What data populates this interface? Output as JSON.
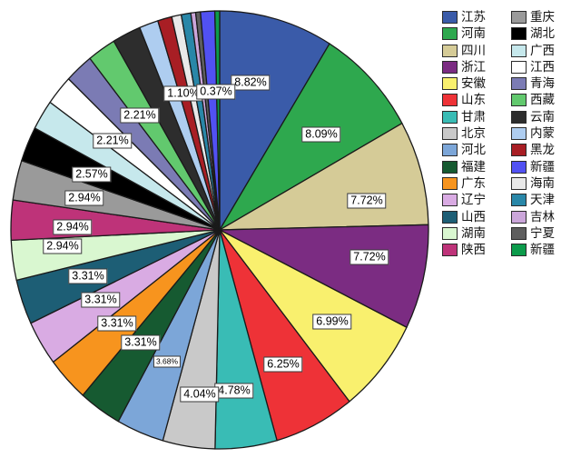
{
  "chart_data": {
    "type": "pie",
    "title": "",
    "value_format": "percent",
    "legend_position": "top-right",
    "slices": [
      {
        "name": "江苏",
        "pct": 8.82,
        "label": "8.82%",
        "color": "#3A5BA9",
        "label_visible": true
      },
      {
        "name": "河南",
        "pct": 8.09,
        "label": "8.09%",
        "color": "#2EA84E",
        "label_visible": true
      },
      {
        "name": "四川",
        "pct": 7.72,
        "label": "7.72%",
        "color": "#D5CB97",
        "label_visible": true
      },
      {
        "name": "浙江",
        "pct": 7.72,
        "label": "7.72%",
        "color": "#7B2C82",
        "label_visible": true
      },
      {
        "name": "安徽",
        "pct": 6.99,
        "label": "6.99%",
        "color": "#F9F06E",
        "label_visible": true
      },
      {
        "name": "山东",
        "pct": 6.25,
        "label": "6.25%",
        "color": "#EE3237",
        "label_visible": true
      },
      {
        "name": "甘肃",
        "pct": 4.78,
        "label": "4.78%",
        "color": "#39BCB5",
        "label_visible": true
      },
      {
        "name": "北京",
        "pct": 4.04,
        "label": "4.04%",
        "color": "#C9C9C9",
        "label_visible": true
      },
      {
        "name": "河北",
        "pct": 3.68,
        "label": "3.68%",
        "color": "#7CA6D8",
        "label_visible": true,
        "small_label": true
      },
      {
        "name": "福建",
        "pct": 3.31,
        "label": "3.31%",
        "color": "#165A31",
        "label_visible": true
      },
      {
        "name": "广东",
        "pct": 3.31,
        "label": "3.31%",
        "color": "#F7941E",
        "label_visible": true
      },
      {
        "name": "辽宁",
        "pct": 3.31,
        "label": "3.31%",
        "color": "#D9ABE3",
        "label_visible": true
      },
      {
        "name": "山西",
        "pct": 3.31,
        "label": "3.31%",
        "color": "#1D5E75",
        "label_visible": true
      },
      {
        "name": "湖南",
        "pct": 2.94,
        "label": "2.94%",
        "color": "#D9F7D0",
        "label_visible": true
      },
      {
        "name": "陕西",
        "pct": 2.94,
        "label": "2.94%",
        "color": "#BE3379",
        "label_visible": true
      },
      {
        "name": "重庆",
        "pct": 2.94,
        "label": "2.94%",
        "color": "#9A9A9A",
        "label_visible": true
      },
      {
        "name": "湖北",
        "pct": 2.57,
        "label": "2.57%",
        "color": "#000000",
        "label_visible": true
      },
      {
        "name": "广西",
        "pct": 2.21,
        "label": "2.21%",
        "color": "#C6E8EC",
        "label_visible": false
      },
      {
        "name": "江西",
        "pct": 2.21,
        "label": "2.21%",
        "color": "#FFFFFF",
        "label_visible": true
      },
      {
        "name": "青海",
        "pct": 2.21,
        "label": "2.21%",
        "color": "#7B7BB4",
        "label_visible": false
      },
      {
        "name": "西藏",
        "pct": 2.21,
        "label": "2.21%",
        "color": "#62C96E",
        "label_visible": true
      },
      {
        "name": "云南",
        "pct": 2.21,
        "label": "2.21%",
        "color": "#2D2D2D",
        "label_visible": false
      },
      {
        "name": "内蒙",
        "pct": 1.47,
        "label": "1.47%",
        "color": "#AECDF0",
        "label_visible": false
      },
      {
        "name": "黑龙",
        "pct": 1.1,
        "label": "1.10%",
        "color": "#A81E24",
        "label_visible": true
      },
      {
        "name": "海南",
        "pct": 0.74,
        "label": "0.74%",
        "color": "#E9E9E9",
        "label_visible": false
      },
      {
        "name": "天津",
        "pct": 0.74,
        "label": "0.74%",
        "color": "#2987A8",
        "label_visible": false
      },
      {
        "name": "吉林",
        "pct": 0.37,
        "label": "0.37%",
        "color": "#CBA6DA",
        "label_visible": false
      },
      {
        "name": "宁夏",
        "pct": 0.37,
        "label": "0.37%",
        "color": "#5E5E5E",
        "label_visible": false
      },
      {
        "name": "新疆",
        "pct": 1.1,
        "label": "1.10%",
        "color": "#5151F2",
        "label_visible": false
      },
      {
        "name": "新疆",
        "pct": 0.37,
        "label": "0.37%",
        "color": "#0C9B4B",
        "label_visible": true
      }
    ],
    "legend": {
      "columns": [
        [
          {
            "label": "江苏",
            "color": "#3A5BA9"
          },
          {
            "label": "河南",
            "color": "#2EA84E"
          },
          {
            "label": "四川",
            "color": "#D5CB97"
          },
          {
            "label": "浙江",
            "color": "#7B2C82"
          },
          {
            "label": "安徽",
            "color": "#F9F06E"
          },
          {
            "label": "山东",
            "color": "#EE3237"
          },
          {
            "label": "甘肃",
            "color": "#39BCB5"
          },
          {
            "label": "北京",
            "color": "#C9C9C9"
          },
          {
            "label": "河北",
            "color": "#7CA6D8"
          },
          {
            "label": "福建",
            "color": "#165A31"
          },
          {
            "label": "广东",
            "color": "#F7941E"
          },
          {
            "label": "辽宁",
            "color": "#D9ABE3"
          },
          {
            "label": "山西",
            "color": "#1D5E75"
          },
          {
            "label": "湖南",
            "color": "#D9F7D0"
          },
          {
            "label": "陕西",
            "color": "#BE3379"
          }
        ],
        [
          {
            "label": "重庆",
            "color": "#9A9A9A"
          },
          {
            "label": "湖北",
            "color": "#000000"
          },
          {
            "label": "广西",
            "color": "#C6E8EC"
          },
          {
            "label": "江西",
            "color": "#FFFFFF"
          },
          {
            "label": "青海",
            "color": "#7B7BB4"
          },
          {
            "label": "西藏",
            "color": "#62C96E"
          },
          {
            "label": "云南",
            "color": "#2D2D2D"
          },
          {
            "label": "内蒙",
            "color": "#AECDF0"
          },
          {
            "label": "黑龙",
            "color": "#A81E24"
          },
          {
            "label": "新疆",
            "color": "#5151F2"
          },
          {
            "label": "海南",
            "color": "#E9E9E9"
          },
          {
            "label": "天津",
            "color": "#2987A8"
          },
          {
            "label": "吉林",
            "color": "#CBA6DA"
          },
          {
            "label": "宁夏",
            "color": "#5E5E5E"
          },
          {
            "label": "新疆",
            "color": "#0C9B4B"
          }
        ]
      ]
    }
  }
}
